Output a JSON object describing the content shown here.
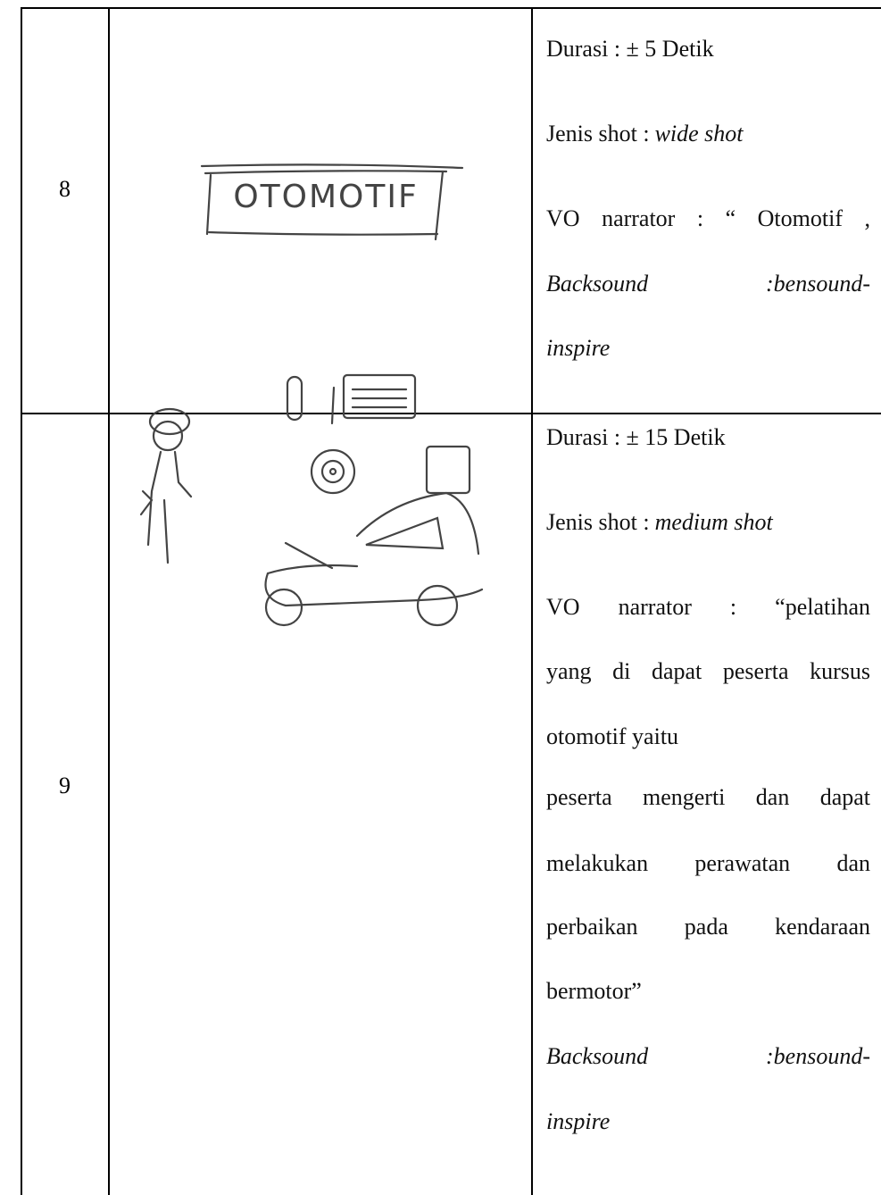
{
  "table": {
    "rows": [
      {
        "number": "8",
        "sketch_text": "OTOMOTIF",
        "durasi": "Durasi : ± 5 Detik",
        "shot_label": "Jenis shot :",
        "shot_value": "wide shot",
        "vo_lines": [
          "VO narrator : “ Otomotif ,"
        ],
        "backsound_label": "Backsound",
        "backsound_value_lines": [
          ":bensound-",
          "inspire"
        ]
      },
      {
        "number": "9",
        "durasi": "Durasi : ± 15 Detik",
        "shot_label": "Jenis shot :",
        "shot_value": "medium shot",
        "vo_lines": [
          "VO narrator : “pelatihan",
          "yang di dapat peserta kursus",
          "otomotif yaitu",
          "peserta mengerti dan dapat",
          "melakukan perawatan dan",
          "perbaikan pada kendaraan",
          "bermotor”"
        ],
        "backsound_label": "Backsound",
        "backsound_value_lines": [
          ":bensound-",
          "inspire"
        ]
      }
    ]
  }
}
